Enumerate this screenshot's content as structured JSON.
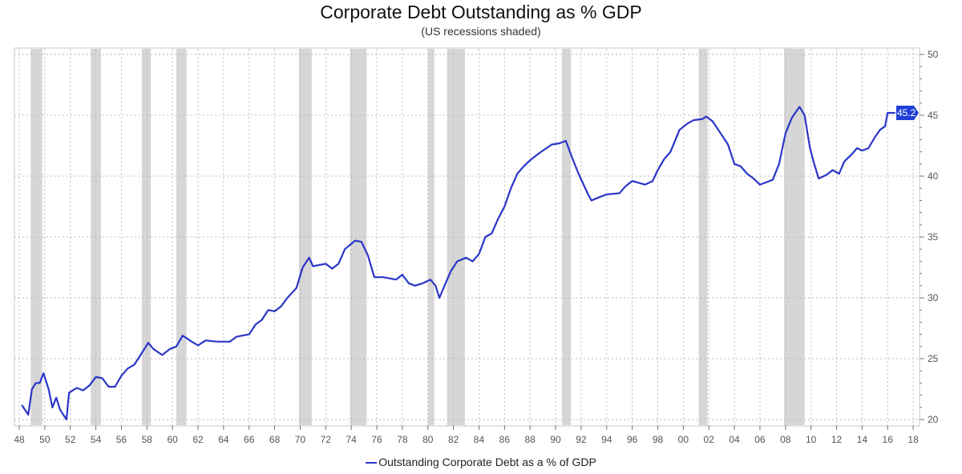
{
  "chart_data": {
    "type": "line",
    "title": "Corporate Debt Outstanding as % GDP",
    "subtitle": "(US recessions shaded)",
    "xlabel": "",
    "ylabel": "",
    "xlim": [
      1948,
      2018
    ],
    "ylim": [
      20,
      50
    ],
    "x_tick_labels": [
      "48",
      "50",
      "52",
      "54",
      "56",
      "58",
      "60",
      "62",
      "64",
      "66",
      "68",
      "70",
      "72",
      "74",
      "76",
      "78",
      "80",
      "82",
      "84",
      "86",
      "88",
      "90",
      "92",
      "94",
      "96",
      "98",
      "00",
      "02",
      "04",
      "06",
      "08",
      "10",
      "12",
      "14",
      "16",
      "18"
    ],
    "y_ticks": [
      20,
      25,
      30,
      35,
      40,
      45,
      50
    ],
    "y_tick_labels": [
      "20",
      "25",
      "30",
      "35",
      "40",
      "45",
      "50"
    ],
    "grid": true,
    "y_axis_side": "right",
    "legend_position": "bottom-center",
    "last_value_label": "45.2",
    "colors": {
      "line": "#2b35c8",
      "recession": "#d6d6d6",
      "badge": "#1f3fd6"
    },
    "recessions": [
      [
        1948.9,
        1949.8
      ],
      [
        1953.6,
        1954.4
      ],
      [
        1957.6,
        1958.3
      ],
      [
        1960.3,
        1961.1
      ],
      [
        1969.9,
        1970.9
      ],
      [
        1973.9,
        1975.2
      ],
      [
        1980.0,
        1980.5
      ],
      [
        1981.5,
        1982.9
      ],
      [
        1990.5,
        1991.2
      ],
      [
        2001.2,
        2001.9
      ],
      [
        2007.9,
        2009.5
      ]
    ],
    "series": [
      {
        "name": "Outstanding Corporate Debt as a % of GDP",
        "x": [
          1948.2,
          1948.7,
          1949.0,
          1949.3,
          1949.6,
          1949.9,
          1950.3,
          1950.6,
          1950.9,
          1951.2,
          1951.7,
          1951.9,
          1952.5,
          1953.0,
          1953.5,
          1954.0,
          1954.5,
          1955.0,
          1955.5,
          1956.0,
          1956.5,
          1957.0,
          1957.5,
          1958.1,
          1958.5,
          1959.2,
          1959.8,
          1960.3,
          1960.8,
          1961.5,
          1962.0,
          1962.6,
          1963.5,
          1964.5,
          1965.0,
          1966.0,
          1966.5,
          1967.0,
          1967.5,
          1968.0,
          1968.5,
          1969.0,
          1969.7,
          1970.2,
          1970.7,
          1971.0,
          1972.0,
          1972.5,
          1973.0,
          1973.5,
          1974.3,
          1974.8,
          1975.3,
          1975.8,
          1976.5,
          1977.0,
          1977.5,
          1978.0,
          1978.5,
          1979.0,
          1979.6,
          1980.2,
          1980.6,
          1980.9,
          1981.3,
          1981.8,
          1982.3,
          1983.0,
          1983.5,
          1984.0,
          1984.5,
          1985.0,
          1985.5,
          1986.0,
          1986.5,
          1987.0,
          1987.5,
          1988.0,
          1988.6,
          1989.0,
          1989.7,
          1990.3,
          1990.8,
          1991.3,
          1991.8,
          1992.5,
          1992.8,
          1993.5,
          1994.0,
          1995.0,
          1995.5,
          1996.0,
          1997.0,
          1997.6,
          1998.0,
          1998.5,
          1999.0,
          1999.7,
          2000.3,
          2000.8,
          2001.5,
          2001.8,
          2002.3,
          2003.0,
          2003.5,
          2004.0,
          2004.5,
          2005.0,
          2005.5,
          2006.0,
          2006.5,
          2007.0,
          2007.5,
          2008.0,
          2008.5,
          2009.1,
          2009.5,
          2009.9,
          2010.2,
          2010.6,
          2011.2,
          2011.7,
          2012.2,
          2012.6,
          2013.2,
          2013.6,
          2014.0,
          2014.5,
          2015.0,
          2015.4,
          2015.8,
          2016.0,
          2016.6
        ],
        "values": [
          21.2,
          20.4,
          22.5,
          23.0,
          23.0,
          23.8,
          22.5,
          21.0,
          21.8,
          20.8,
          20.0,
          22.2,
          22.6,
          22.4,
          22.8,
          23.5,
          23.4,
          22.7,
          22.7,
          23.6,
          24.2,
          24.5,
          25.3,
          26.3,
          25.8,
          25.3,
          25.8,
          26.0,
          26.9,
          26.4,
          26.1,
          26.5,
          26.4,
          26.4,
          26.8,
          27.0,
          27.8,
          28.2,
          29.0,
          28.9,
          29.3,
          30.0,
          30.8,
          32.5,
          33.3,
          32.6,
          32.8,
          32.4,
          32.8,
          34.0,
          34.7,
          34.6,
          33.5,
          31.7,
          31.7,
          31.6,
          31.5,
          31.9,
          31.2,
          31.0,
          31.2,
          31.5,
          31.0,
          30.0,
          31.0,
          32.2,
          33.0,
          33.3,
          33.0,
          33.6,
          35.0,
          35.3,
          36.5,
          37.5,
          39.0,
          40.2,
          40.8,
          41.3,
          41.8,
          42.1,
          42.6,
          42.7,
          42.9,
          41.5,
          40.2,
          38.6,
          38.0,
          38.3,
          38.5,
          38.6,
          39.2,
          39.6,
          39.3,
          39.6,
          40.5,
          41.4,
          42.0,
          43.8,
          44.3,
          44.6,
          44.7,
          44.9,
          44.5,
          43.4,
          42.6,
          41.0,
          40.8,
          40.2,
          39.8,
          39.3,
          39.5,
          39.7,
          41.0,
          43.5,
          44.8,
          45.7,
          45.0,
          42.4,
          41.2,
          39.8,
          40.1,
          40.5,
          40.2,
          41.2,
          41.8,
          42.3,
          42.1,
          42.3,
          43.2,
          43.8,
          44.1,
          45.2,
          45.2
        ]
      }
    ]
  }
}
